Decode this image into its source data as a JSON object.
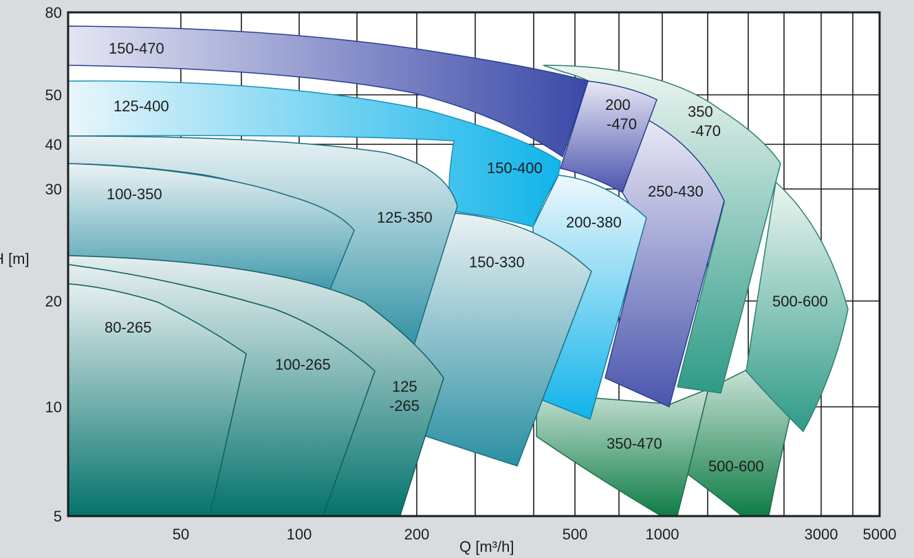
{
  "chart_data": {
    "type": "area",
    "title": "",
    "xlabel": "Q [m³/h]",
    "ylabel": "H [m]",
    "x_scale": "log",
    "y_scale": "log",
    "xlim": [
      25,
      5000
    ],
    "ylim": [
      5,
      80
    ],
    "x_ticks": [
      "50",
      "100",
      "200",
      "500",
      "1000",
      "3000",
      "5000"
    ],
    "y_ticks": [
      "5",
      "10",
      "20",
      "30",
      "40",
      "50",
      "80"
    ],
    "grid": true,
    "regions": [
      {
        "label": "150-470",
        "color": "#7f85c4"
      },
      {
        "label": "125-400",
        "color": "#33bde8"
      },
      {
        "label": "100-350",
        "color": "#3d9aa6"
      },
      {
        "label": "80-265",
        "color": "#127c76"
      },
      {
        "label": "100-265",
        "color": "#2b8686"
      },
      {
        "label": "125\n-265",
        "color": "#2a8f97"
      },
      {
        "label": "125-350",
        "color": "#3a9cb0"
      },
      {
        "label": "150-400",
        "color": "#29b8e6"
      },
      {
        "label": "150-330",
        "color": "#3aa6c4"
      },
      {
        "label": "200\n-470",
        "color": "#6e74bd"
      },
      {
        "label": "200-380",
        "color": "#31b9ea"
      },
      {
        "label": "250-430",
        "color": "#5866b6"
      },
      {
        "label": "350\n-470",
        "color": "#3a9a7e"
      },
      {
        "label": "500-600",
        "color": "#3aa68f"
      },
      {
        "label": "350-470",
        "color": "#2f8f5c"
      },
      {
        "label": "500-600",
        "color": "#1c8a4c"
      }
    ]
  }
}
